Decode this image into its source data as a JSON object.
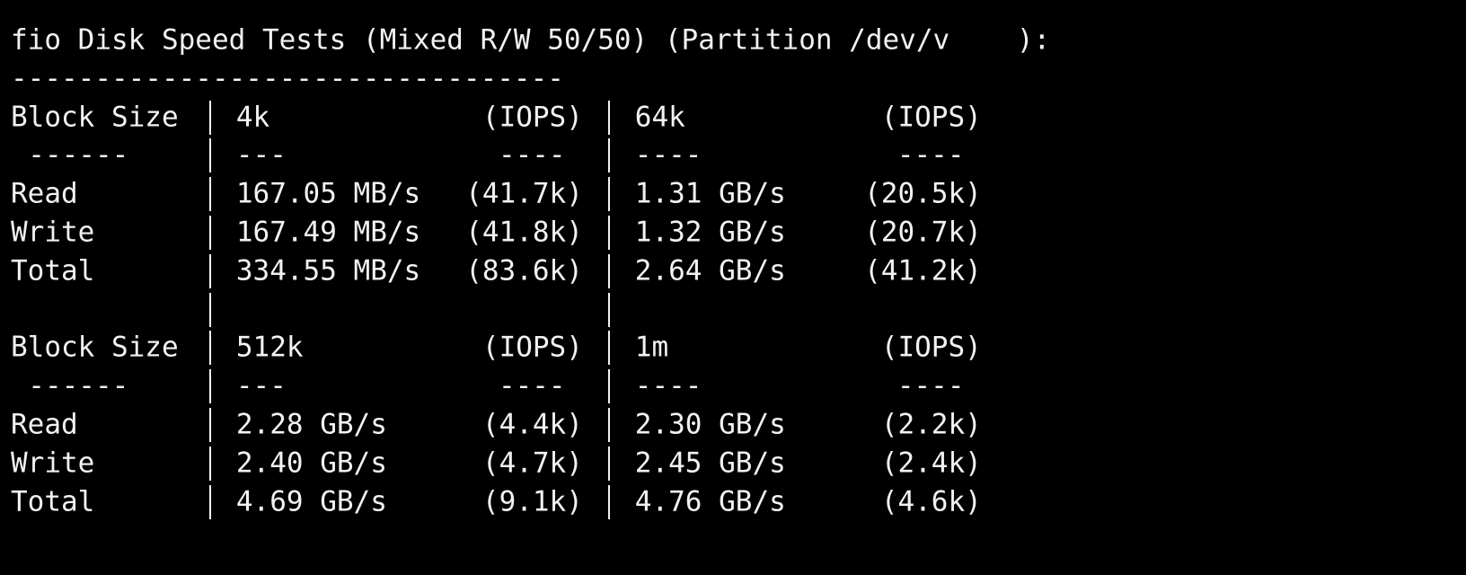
{
  "title": "fio Disk Speed Tests (Mixed R/W 50/50) (Partition /dev/v    ):",
  "separator": "---------------------------------",
  "blocks": [
    {
      "header": [
        "Block Size",
        "4k",
        "(IOPS)",
        "64k",
        "(IOPS)"
      ],
      "dashes": [
        "------",
        "---",
        "----",
        "----",
        "----"
      ],
      "rows": [
        [
          "Read",
          "167.05 MB/s",
          "(41.7k)",
          "1.31 GB/s",
          "(20.5k)"
        ],
        [
          "Write",
          "167.49 MB/s",
          "(41.8k)",
          "1.32 GB/s",
          "(20.7k)"
        ],
        [
          "Total",
          "334.55 MB/s",
          "(83.6k)",
          "2.64 GB/s",
          "(41.2k)"
        ]
      ]
    },
    {
      "header": [
        "Block Size",
        "512k",
        "(IOPS)",
        "1m",
        "(IOPS)"
      ],
      "dashes": [
        "------",
        "---",
        "----",
        "----",
        "----"
      ],
      "rows": [
        [
          "Read",
          "2.28 GB/s",
          "(4.4k)",
          "2.30 GB/s",
          "(2.2k)"
        ],
        [
          "Write",
          "2.40 GB/s",
          "(4.7k)",
          "2.45 GB/s",
          "(2.4k)"
        ],
        [
          "Total",
          "4.69 GB/s",
          "(9.1k)",
          "4.76 GB/s",
          "(4.6k)"
        ]
      ]
    }
  ]
}
